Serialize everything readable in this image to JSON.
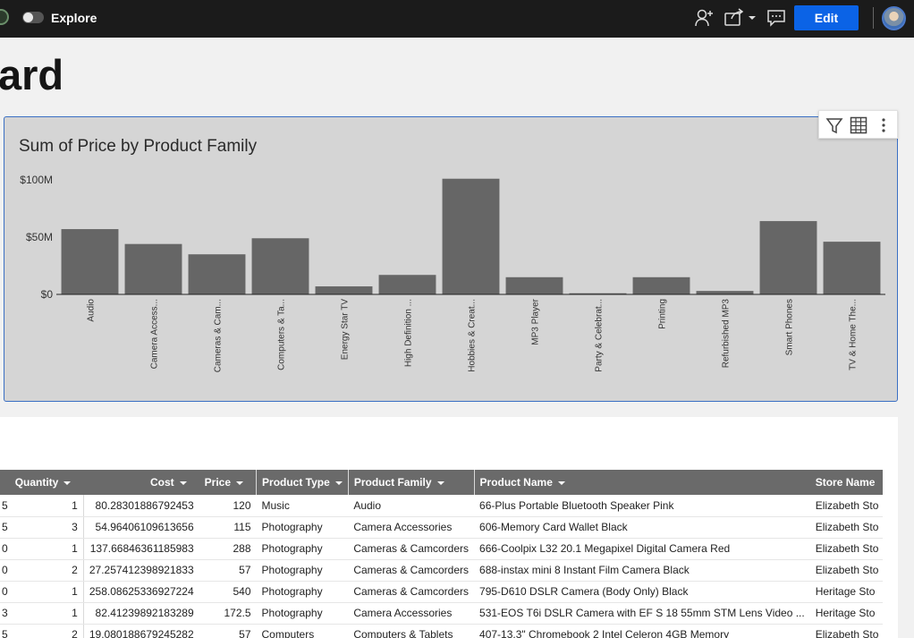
{
  "topbar": {
    "explore_label": "Explore",
    "edit_label": "Edit"
  },
  "page": {
    "title": "ard"
  },
  "chart": {
    "title": "Sum of Price by Product Family"
  },
  "chart_data": {
    "type": "bar",
    "title": "Sum of Price by Product Family",
    "xlabel": "",
    "ylabel": "",
    "ylim": [
      0,
      100
    ],
    "y_unit": "$M",
    "y_ticks": [
      0,
      50,
      100
    ],
    "y_tick_labels": [
      "$0",
      "$50M",
      "$100M"
    ],
    "categories": [
      "Audio",
      "Camera Access...",
      "Cameras & Cam...",
      "Computers & Ta...",
      "Energy Star TV",
      "High Definition ...",
      "Hobbies & Creat...",
      "MP3 Player",
      "Party & Celebrat...",
      "Printing",
      "Refurbished MP3",
      "Smart Phones",
      "TV & Home The..."
    ],
    "values": [
      57,
      44,
      35,
      49,
      7,
      17,
      101,
      15,
      1,
      15,
      3,
      64,
      46
    ],
    "bar_color": "#666666",
    "grid": false
  },
  "table": {
    "columns": [
      {
        "label": "",
        "caret": false
      },
      {
        "label": "Quantity",
        "caret": true
      },
      {
        "label": "Cost",
        "caret": true
      },
      {
        "label": "Price",
        "caret": true
      },
      {
        "label": "Product Type",
        "caret": true
      },
      {
        "label": "Product Family",
        "caret": true
      },
      {
        "label": "Product Name",
        "caret": true
      },
      {
        "label": "Store Name",
        "caret": false
      }
    ],
    "rows": [
      [
        "5",
        "1",
        "80.28301886792453",
        "120",
        "Music",
        "Audio",
        "66-Plus Portable Bluetooth Speaker   Pink",
        "Elizabeth Sto"
      ],
      [
        "5",
        "3",
        "54.96406109613656",
        "115",
        "Photography",
        "Camera Accessories",
        "606-Memory Card Wallet   Black",
        "Elizabeth Sto"
      ],
      [
        "0",
        "1",
        "137.66846361185983",
        "288",
        "Photography",
        "Cameras & Camcorders",
        "666-Coolpix L32 20.1 Megapixel Digital Camera   Red",
        "Elizabeth Sto"
      ],
      [
        "0",
        "2",
        "27.257412398921833",
        "57",
        "Photography",
        "Cameras & Camcorders",
        "688-instax mini 8 Instant Film Camera   Black",
        "Elizabeth Sto"
      ],
      [
        "0",
        "1",
        "258.08625336927224",
        "540",
        "Photography",
        "Cameras & Camcorders",
        "795-D610 DSLR Camera (Body Only)   Black",
        "Heritage Sto"
      ],
      [
        "3",
        "1",
        "82.41239892183289",
        "172.5",
        "Photography",
        "Camera Accessories",
        "531-EOS T6i DSLR Camera with EF S 18 55mm STM Lens Video ...",
        "Heritage Sto"
      ],
      [
        "5",
        "2",
        "19.080188679245282",
        "57",
        "Computers",
        "Computers & Tablets",
        "407-13.3\" Chromebook 2   Intel Celeron   4GB Memory",
        "Elizabeth Sto"
      ]
    ]
  }
}
